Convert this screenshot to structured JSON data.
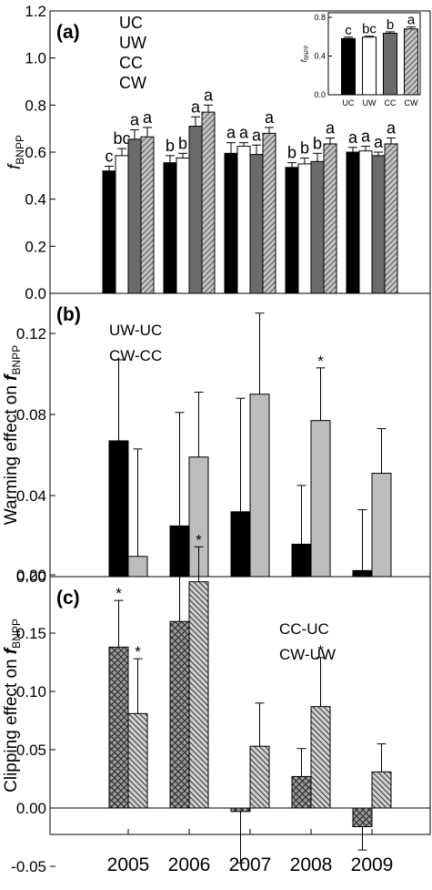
{
  "figure": {
    "x_tick_labels": [
      "2005",
      "2006",
      "2007",
      "2008",
      "2009"
    ]
  },
  "colors": {
    "black": "#000000",
    "white": "#ffffff",
    "dark_gray": "#6b6b6b",
    "light_gray": "#bdbdbd"
  },
  "chart_data": [
    {
      "panel_label": "(a)",
      "type": "bar",
      "categories": [
        "2005",
        "2006",
        "2007",
        "2008",
        "2009"
      ],
      "ylabel": "f",
      "ylabel_sub": "BNPP",
      "ylim": [
        0,
        1.2
      ],
      "yticks": [
        "0.0",
        "0.2",
        "0.4",
        "0.6",
        "0.8",
        "1.0",
        "1.2"
      ],
      "legend": [
        "UC",
        "UW",
        "CC",
        "CW"
      ],
      "series": [
        {
          "name": "UC",
          "fill": "black",
          "values": [
            0.52,
            0.555,
            0.595,
            0.535,
            0.6
          ],
          "errors": [
            0.02,
            0.03,
            0.045,
            0.02,
            0.02
          ],
          "letters": [
            "c",
            "b",
            "a",
            "b",
            "a"
          ]
        },
        {
          "name": "UW",
          "fill": "white",
          "values": [
            0.585,
            0.575,
            0.625,
            0.55,
            0.605
          ],
          "errors": [
            0.03,
            0.02,
            0.015,
            0.025,
            0.02
          ],
          "letters": [
            "bc",
            "b",
            "a",
            "b",
            "a"
          ]
        },
        {
          "name": "CC",
          "fill": "dark_gray",
          "values": [
            0.655,
            0.71,
            0.59,
            0.56,
            0.585
          ],
          "errors": [
            0.04,
            0.04,
            0.04,
            0.035,
            0.015
          ],
          "letters": [
            "a",
            "a",
            "a",
            "b",
            "a"
          ]
        },
        {
          "name": "CW",
          "fill": "hatched",
          "values": [
            0.665,
            0.77,
            0.68,
            0.635,
            0.635
          ],
          "errors": [
            0.04,
            0.03,
            0.025,
            0.025,
            0.025
          ],
          "letters": [
            "a",
            "a",
            "a",
            "a",
            "a"
          ]
        }
      ],
      "inset": {
        "type": "bar",
        "categories": [
          "UC",
          "UW",
          "CC",
          "CW"
        ],
        "values": [
          0.58,
          0.595,
          0.635,
          0.68
        ],
        "errors": [
          0.015,
          0.01,
          0.015,
          0.02
        ],
        "letters": [
          "c",
          "bc",
          "b",
          "a"
        ],
        "fills": [
          "black",
          "white",
          "dark_gray",
          "hatched"
        ],
        "ylim": [
          0,
          0.8
        ],
        "yticks": [
          "0.0",
          "0.4",
          "0.8"
        ],
        "ylabel": "f",
        "ylabel_sub": "BNPP"
      }
    },
    {
      "panel_label": "(b)",
      "type": "bar",
      "categories": [
        "2005",
        "2006",
        "2007",
        "2008",
        "2009"
      ],
      "ylabel": "Warming effect on f",
      "ylabel_sub": "BNPP",
      "ylim": [
        0,
        0.135
      ],
      "yticks": [
        "0.00",
        "0.04",
        "0.08",
        "0.12"
      ],
      "legend": [
        "UW-UC",
        "CW-CC"
      ],
      "series": [
        {
          "name": "UW-UC",
          "fill": "black",
          "values": [
            0.067,
            0.025,
            0.032,
            0.016,
            0.003
          ],
          "errors": [
            0.04,
            0.056,
            0.056,
            0.029,
            0.03
          ],
          "stars": [
            false,
            false,
            false,
            false,
            false
          ]
        },
        {
          "name": "CW-CC",
          "fill": "light_gray",
          "values": [
            0.01,
            0.059,
            0.09,
            0.077,
            0.051
          ],
          "errors": [
            0.053,
            0.032,
            0.04,
            0.026,
            0.022
          ],
          "stars": [
            false,
            false,
            false,
            true,
            false
          ]
        }
      ]
    },
    {
      "panel_label": "(c)",
      "type": "bar",
      "categories": [
        "2005",
        "2006",
        "2007",
        "2008",
        "2009"
      ],
      "ylabel": "Clipping effect on f",
      "ylabel_sub": "BNPP",
      "ylim": [
        -0.06,
        0.235
      ],
      "yticks": [
        "-0.05",
        "0.00",
        "0.05",
        "0.10",
        "0.15",
        "0.20"
      ],
      "legend": [
        "CC-UC",
        "CW-UW"
      ],
      "series": [
        {
          "name": "CC-UC",
          "fill": "crosshatch",
          "values": [
            0.138,
            0.16,
            -0.003,
            0.027,
            -0.016
          ],
          "errors": [
            0.04,
            0.058,
            0.044,
            0.024,
            0.02
          ],
          "err_dir": [
            "up",
            "up",
            "down",
            "up",
            "down"
          ],
          "stars": [
            true,
            true,
            false,
            false,
            false
          ]
        },
        {
          "name": "CW-UW",
          "fill": "diagonal",
          "values": [
            0.081,
            0.194,
            0.053,
            0.087,
            0.031
          ],
          "errors": [
            0.047,
            0.03,
            0.037,
            0.042,
            0.024
          ],
          "err_dir": [
            "up",
            "up",
            "up",
            "up",
            "up"
          ],
          "stars": [
            true,
            true,
            false,
            true,
            false
          ]
        }
      ]
    }
  ]
}
